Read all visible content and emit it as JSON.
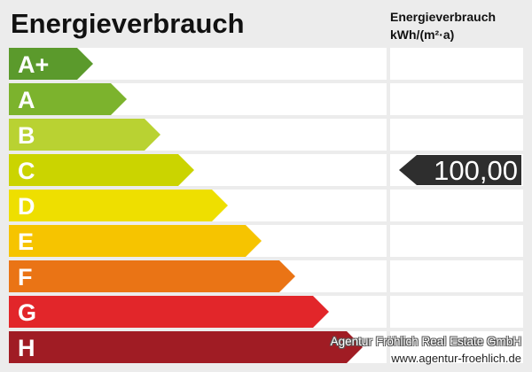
{
  "title": "Energieverbrauch",
  "column_header": {
    "line1": "Energieverbrauch",
    "line2": "kWh/(m²·a)"
  },
  "classes": [
    {
      "label": "A+",
      "color": "#5b9a2c"
    },
    {
      "label": "A",
      "color": "#7cb32d"
    },
    {
      "label": "B",
      "color": "#b9d232"
    },
    {
      "label": "C",
      "color": "#cbd400"
    },
    {
      "label": "D",
      "color": "#eedf00"
    },
    {
      "label": "E",
      "color": "#f6c400"
    },
    {
      "label": "F",
      "color": "#ea7415"
    },
    {
      "label": "G",
      "color": "#e2262a"
    },
    {
      "label": "H",
      "color": "#a01c24"
    }
  ],
  "indicator": {
    "class_index": 3,
    "value": "100,00",
    "color": "#2e2e2e"
  },
  "footer": {
    "agency": "Agentur Fröhlich Real Estate GmbH",
    "website": "www.agentur-froehlich.de"
  }
}
